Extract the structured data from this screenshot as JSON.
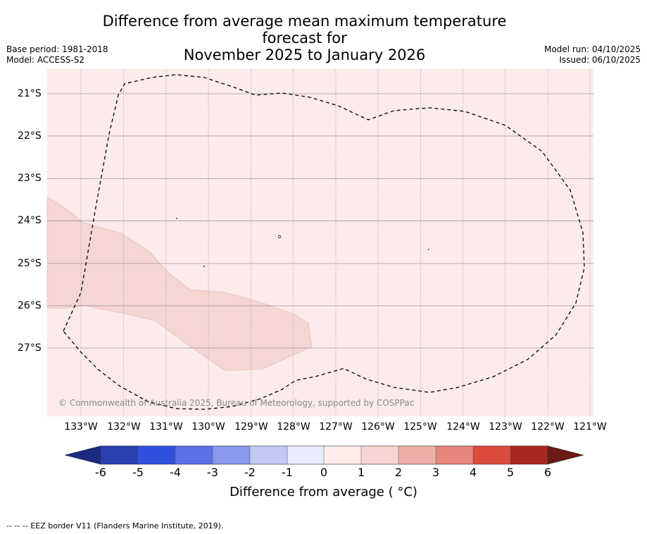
{
  "title_line1": "Difference from average mean maximum temperature forecast for",
  "title_line2": "November 2025 to January 2026",
  "base_period": "Base period: 1981-2018",
  "model": "Model: ACCESS-S2",
  "model_run": "Model run: 04/10/2025",
  "issued": "Issued: 06/10/2025",
  "copyright": "© Commonwealth of Australia 2025, Bureau of Meteorology, supported by COSPPac",
  "footnote": "--  --  -- EEZ border V11 (Flanders Marine Institute, 2019).",
  "lat_labels": [
    "21°S",
    "22°S",
    "23°S",
    "24°S",
    "25°S",
    "26°S",
    "27°S"
  ],
  "lon_labels": [
    "133°W",
    "132°W",
    "131°W",
    "130°W",
    "129°W",
    "128°W",
    "127°W",
    "126°W",
    "125°W",
    "124°W",
    "123°W",
    "122°W",
    "121°W"
  ],
  "colorbar": {
    "title": "Difference from average ( °C)",
    "ticks": [
      "-6",
      "-5",
      "-4",
      "-3",
      "-2",
      "-1",
      "0",
      "1",
      "2",
      "3",
      "4",
      "5",
      "6"
    ],
    "colors": [
      "#1a2a80",
      "#2a3fb0",
      "#3150de",
      "#5a70e4",
      "#8898ec",
      "#c2c9f4",
      "#e8ebfb",
      "#fcecea",
      "#f5d5d2",
      "#edaea8",
      "#e6857c",
      "#dc4a3e",
      "#a82820",
      "#6b1a14"
    ]
  },
  "map": {
    "background_class": "0 to 1",
    "background_color": "#fbebea",
    "anomaly_patch_class": "1 to 2",
    "anomaly_patch_color": "#f5d6d3"
  }
}
